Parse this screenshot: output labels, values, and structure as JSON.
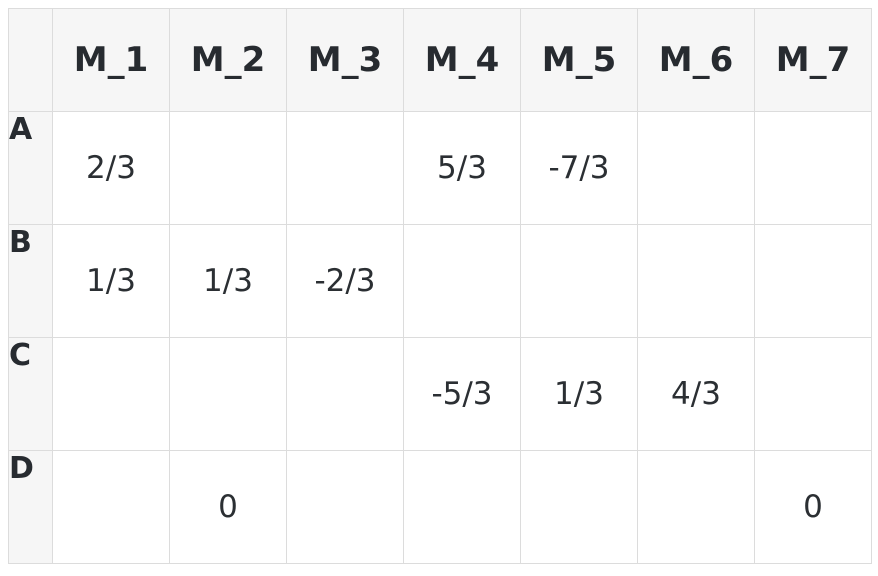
{
  "table": {
    "columns": [
      "M_1",
      "M_2",
      "M_3",
      "M_4",
      "M_5",
      "M_6",
      "M_7"
    ],
    "rows": [
      {
        "label": "A",
        "cells": [
          "2/3",
          "",
          "",
          "5/3",
          "-7/3",
          "",
          ""
        ]
      },
      {
        "label": "B",
        "cells": [
          "1/3",
          "1/3",
          "-2/3",
          "",
          "",
          "",
          ""
        ]
      },
      {
        "label": "C",
        "cells": [
          "",
          "",
          "",
          "-5/3",
          "1/3",
          "4/3",
          ""
        ]
      },
      {
        "label": "D",
        "cells": [
          "",
          "0",
          "",
          "",
          "",
          "",
          "0"
        ]
      }
    ]
  }
}
